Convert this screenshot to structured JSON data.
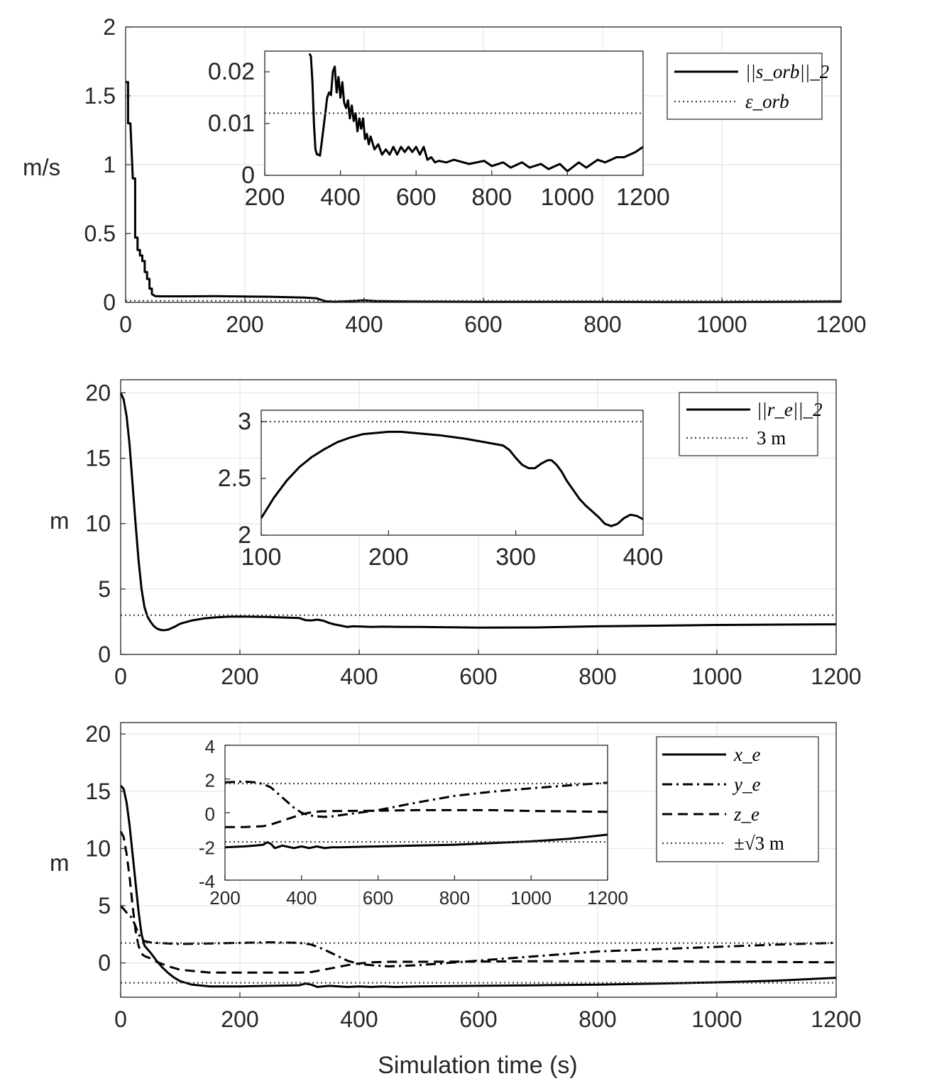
{
  "chart_data": [
    {
      "type": "line",
      "ylabel": "m/s",
      "xlabel": "",
      "xlim": [
        0,
        1200
      ],
      "ylim": [
        0,
        2
      ],
      "xticks": [
        "0",
        "200",
        "400",
        "600",
        "800",
        "1000",
        "1200"
      ],
      "yticks": [
        "0",
        "0.5",
        "1",
        "1.5",
        "2"
      ],
      "grid": true,
      "legend_position": "top-right",
      "series": [
        {
          "name": "||s_orb||_2",
          "style": "solid",
          "x": [
            0,
            4,
            4,
            8,
            8,
            12,
            12,
            16,
            16,
            20,
            20,
            24,
            24,
            28,
            28,
            32,
            32,
            36,
            36,
            40,
            40,
            44,
            44,
            50,
            60,
            100,
            150,
            200,
            250,
            300,
            320,
            335,
            350,
            380,
            400,
            420,
            450,
            500,
            600,
            700,
            800,
            900,
            1000,
            1100,
            1200
          ],
          "y": [
            1.6,
            1.6,
            1.3,
            1.3,
            1.3,
            0.9,
            0.9,
            0.9,
            0.47,
            0.47,
            0.38,
            0.38,
            0.34,
            0.34,
            0.3,
            0.3,
            0.22,
            0.22,
            0.17,
            0.17,
            0.1,
            0.1,
            0.06,
            0.045,
            0.044,
            0.044,
            0.045,
            0.043,
            0.04,
            0.035,
            0.03,
            0.008,
            0.004,
            0.01,
            0.015,
            0.01,
            0.007,
            0.005,
            0.003,
            0.003,
            0.003,
            0.002,
            0.002,
            0.003,
            0.006
          ]
        },
        {
          "name": "ε_orb",
          "style": "dotted",
          "x": [
            0,
            1200
          ],
          "y": [
            0.012,
            0.012
          ]
        }
      ],
      "legend": [
        "||s_orb||_2",
        "ε_orb"
      ],
      "inset": {
        "xlim": [
          200,
          1200
        ],
        "ylim": [
          0,
          0.024
        ],
        "xticks": [
          "200",
          "400",
          "600",
          "800",
          "1000",
          "1200"
        ],
        "yticks": [
          "0",
          "0.01",
          "0.02"
        ],
        "series": [
          {
            "style": "solid",
            "x": [
              318,
              322,
              326,
              330,
              334,
              338,
              342,
              346,
              350,
              355,
              360,
              365,
              370,
              375,
              380,
              385,
              390,
              395,
              400,
              405,
              410,
              415,
              420,
              425,
              430,
              435,
              440,
              445,
              450,
              455,
              460,
              465,
              470,
              475,
              480,
              490,
              500,
              510,
              520,
              530,
              540,
              550,
              560,
              570,
              580,
              590,
              600,
              610,
              620,
              630,
              640,
              650,
              660,
              680,
              700,
              740,
              780,
              800,
              830,
              850,
              880,
              900,
              930,
              950,
              980,
              1000,
              1030,
              1050,
              1080,
              1100,
              1130,
              1150,
              1180,
              1200
            ],
            "y": [
              0.0235,
              0.023,
              0.018,
              0.01,
              0.005,
              0.004,
              0.004,
              0.0038,
              0.006,
              0.009,
              0.012,
              0.015,
              0.016,
              0.0155,
              0.02,
              0.021,
              0.016,
              0.019,
              0.015,
              0.018,
              0.014,
              0.013,
              0.0145,
              0.011,
              0.0135,
              0.0105,
              0.012,
              0.0085,
              0.011,
              0.009,
              0.011,
              0.007,
              0.008,
              0.006,
              0.0075,
              0.005,
              0.006,
              0.004,
              0.005,
              0.004,
              0.0055,
              0.004,
              0.0055,
              0.0045,
              0.0055,
              0.0045,
              0.0055,
              0.004,
              0.0055,
              0.003,
              0.0035,
              0.0025,
              0.0028,
              0.0025,
              0.003,
              0.0022,
              0.0028,
              0.0018,
              0.0025,
              0.0015,
              0.0025,
              0.0015,
              0.0022,
              0.0012,
              0.0022,
              0.0008,
              0.0025,
              0.0015,
              0.003,
              0.0025,
              0.0035,
              0.0035,
              0.0045,
              0.0055
            ]
          },
          {
            "style": "dotted",
            "x": [
              200,
              1200
            ],
            "y": [
              0.012,
              0.012
            ]
          }
        ]
      }
    },
    {
      "type": "line",
      "ylabel": "m",
      "xlabel": "",
      "xlim": [
        0,
        1200
      ],
      "ylim": [
        0,
        21
      ],
      "xticks": [
        "0",
        "200",
        "400",
        "600",
        "800",
        "1000",
        "1200"
      ],
      "yticks": [
        "0",
        "5",
        "10",
        "15",
        "20"
      ],
      "grid": true,
      "legend_position": "top-right",
      "series": [
        {
          "name": "||r_e||_2",
          "style": "solid",
          "x": [
            0,
            5,
            10,
            15,
            20,
            25,
            30,
            35,
            40,
            45,
            50,
            55,
            60,
            65,
            70,
            75,
            80,
            90,
            100,
            120,
            140,
            160,
            180,
            200,
            250,
            300,
            310,
            320,
            330,
            340,
            350,
            360,
            370,
            380,
            390,
            400,
            420,
            440,
            460,
            480,
            500,
            550,
            600,
            700,
            800,
            900,
            1000,
            1100,
            1200
          ],
          "y": [
            20,
            19.5,
            18.2,
            16,
            13,
            10,
            7.2,
            5,
            3.6,
            2.9,
            2.5,
            2.2,
            2.0,
            1.9,
            1.85,
            1.86,
            1.9,
            2.1,
            2.35,
            2.6,
            2.75,
            2.84,
            2.88,
            2.9,
            2.86,
            2.78,
            2.62,
            2.6,
            2.66,
            2.58,
            2.4,
            2.28,
            2.2,
            2.1,
            2.15,
            2.14,
            2.1,
            2.12,
            2.11,
            2.1,
            2.1,
            2.08,
            2.05,
            2.06,
            2.15,
            2.2,
            2.25,
            2.28,
            2.3
          ]
        },
        {
          "name": "3 m",
          "style": "dotted",
          "x": [
            0,
            1200
          ],
          "y": [
            3,
            3
          ]
        }
      ],
      "legend": [
        "||r_e||_2",
        "3 m"
      ],
      "inset": {
        "xlim": [
          100,
          400
        ],
        "ylim": [
          2,
          3.1
        ],
        "xticks": [
          "100",
          "200",
          "300",
          "400"
        ],
        "yticks": [
          "2",
          "2.5",
          "3"
        ],
        "series": [
          {
            "style": "solid",
            "x": [
              100,
              110,
              120,
              130,
              140,
              150,
              160,
              170,
              180,
              190,
              200,
              210,
              220,
              240,
              260,
              280,
              290,
              295,
              300,
              305,
              310,
              315,
              320,
              325,
              328,
              332,
              336,
              340,
              345,
              350,
              355,
              360,
              365,
              370,
              375,
              380,
              385,
              390,
              395,
              400
            ],
            "y": [
              2.15,
              2.33,
              2.48,
              2.6,
              2.69,
              2.76,
              2.82,
              2.86,
              2.89,
              2.9,
              2.91,
              2.91,
              2.9,
              2.88,
              2.85,
              2.81,
              2.79,
              2.75,
              2.68,
              2.62,
              2.59,
              2.59,
              2.63,
              2.66,
              2.66,
              2.62,
              2.56,
              2.48,
              2.4,
              2.32,
              2.26,
              2.21,
              2.16,
              2.1,
              2.08,
              2.1,
              2.15,
              2.18,
              2.17,
              2.14
            ]
          },
          {
            "style": "dotted",
            "x": [
              100,
              400
            ],
            "y": [
              3,
              3
            ]
          }
        ]
      }
    },
    {
      "type": "line",
      "ylabel": "m",
      "xlabel": "Simulation time (s)",
      "xlim": [
        0,
        1200
      ],
      "ylim": [
        -3,
        21
      ],
      "xticks": [
        "0",
        "200",
        "400",
        "600",
        "800",
        "1000",
        "1200"
      ],
      "yticks": [
        "0",
        "5",
        "10",
        "15",
        "20"
      ],
      "grid": true,
      "legend_position": "top-right",
      "series": [
        {
          "name": "x_e",
          "style": "solid",
          "x": [
            0,
            5,
            10,
            15,
            20,
            25,
            30,
            35,
            40,
            45,
            50,
            60,
            70,
            80,
            90,
            100,
            120,
            150,
            200,
            250,
            300,
            310,
            320,
            330,
            350,
            380,
            400,
            420,
            440,
            460,
            500,
            600,
            700,
            800,
            900,
            1000,
            1100,
            1200
          ],
          "y": [
            15.5,
            15.2,
            14,
            12,
            9.5,
            7,
            4.5,
            2.5,
            1.5,
            1.2,
            0.9,
            0.2,
            -0.4,
            -0.9,
            -1.3,
            -1.6,
            -1.9,
            -2.05,
            -2.05,
            -2.0,
            -1.95,
            -1.8,
            -1.9,
            -2.1,
            -2.0,
            -2.1,
            -2.05,
            -2.1,
            -2.05,
            -2.1,
            -2.05,
            -2.0,
            -1.95,
            -1.9,
            -1.8,
            -1.7,
            -1.55,
            -1.3
          ]
        },
        {
          "name": "y_e",
          "style": "dashdot",
          "x": [
            0,
            5,
            10,
            15,
            20,
            25,
            30,
            35,
            40,
            45,
            50,
            60,
            80,
            100,
            150,
            200,
            250,
            300,
            320,
            340,
            360,
            380,
            400,
            420,
            450,
            500,
            600,
            700,
            800,
            900,
            1000,
            1100,
            1200
          ],
          "y": [
            5,
            4.7,
            4.4,
            4.2,
            3.8,
            3.2,
            2.5,
            2.1,
            1.9,
            1.85,
            1.8,
            1.75,
            1.7,
            1.65,
            1.7,
            1.75,
            1.8,
            1.75,
            1.6,
            1.2,
            0.7,
            0.2,
            -0.1,
            -0.2,
            -0.3,
            -0.2,
            0.2,
            0.6,
            1.0,
            1.2,
            1.4,
            1.6,
            1.75
          ]
        },
        {
          "name": "z_e",
          "style": "dashed",
          "x": [
            0,
            5,
            10,
            15,
            20,
            25,
            30,
            35,
            40,
            45,
            50,
            60,
            80,
            100,
            150,
            200,
            250,
            300,
            320,
            340,
            360,
            380,
            400,
            420,
            450,
            500,
            600,
            700,
            800,
            900,
            1000,
            1100,
            1200
          ],
          "y": [
            11.5,
            11,
            9.5,
            7.5,
            5,
            2.8,
            1.5,
            0.8,
            0.6,
            0.5,
            0.4,
            0.1,
            -0.3,
            -0.6,
            -0.85,
            -0.85,
            -0.85,
            -0.85,
            -0.8,
            -0.6,
            -0.4,
            -0.2,
            -0.05,
            0.05,
            0.1,
            0.1,
            0.12,
            0.15,
            0.15,
            0.15,
            0.1,
            0.08,
            0.05
          ]
        },
        {
          "name": "±√3 m",
          "style": "dotted",
          "x": [
            0,
            1200
          ],
          "y": [
            1.732,
            1.732
          ]
        },
        {
          "style": "dotted",
          "x": [
            0,
            1200
          ],
          "y": [
            -1.732,
            -1.732
          ]
        }
      ],
      "legend": [
        "x_e",
        "y_e",
        "z_e",
        "±√3 m"
      ],
      "inset": {
        "xlim": [
          200,
          1200
        ],
        "ylim": [
          -4,
          4
        ],
        "xticks": [
          "200",
          "400",
          "600",
          "800",
          "1000",
          "1200"
        ],
        "yticks": [
          "-4",
          "-2",
          "0",
          "2",
          "4"
        ],
        "series": [
          {
            "style": "solid",
            "x": [
              200,
              250,
              280,
              300,
              310,
              320,
              330,
              350,
              380,
              400,
              420,
              440,
              460,
              480,
              500,
              600,
              700,
              800,
              900,
              1000,
              1100,
              1200
            ],
            "y": [
              -2.05,
              -2.0,
              -1.95,
              -1.9,
              -1.75,
              -1.85,
              -2.1,
              -1.95,
              -2.1,
              -2.0,
              -2.1,
              -2.0,
              -2.1,
              -2.05,
              -2.05,
              -2.0,
              -1.95,
              -1.9,
              -1.8,
              -1.7,
              -1.55,
              -1.3
            ]
          },
          {
            "style": "dashdot",
            "x": [
              200,
              250,
              280,
              300,
              320,
              340,
              360,
              380,
              400,
              420,
              440,
              460,
              480,
              500,
              600,
              700,
              800,
              900,
              1000,
              1100,
              1200
            ],
            "y": [
              1.8,
              1.85,
              1.8,
              1.7,
              1.5,
              1.1,
              0.7,
              0.3,
              0.0,
              -0.15,
              -0.22,
              -0.25,
              -0.22,
              -0.15,
              0.15,
              0.6,
              1.0,
              1.25,
              1.45,
              1.62,
              1.78
            ]
          },
          {
            "style": "dashed",
            "x": [
              200,
              250,
              300,
              320,
              340,
              360,
              380,
              400,
              420,
              450,
              500,
              600,
              700,
              800,
              900,
              1000,
              1100,
              1200
            ],
            "y": [
              -0.85,
              -0.85,
              -0.8,
              -0.7,
              -0.55,
              -0.4,
              -0.25,
              -0.1,
              0.0,
              0.08,
              0.1,
              0.12,
              0.15,
              0.15,
              0.15,
              0.1,
              0.08,
              0.05
            ]
          },
          {
            "style": "dotted",
            "x": [
              200,
              1200
            ],
            "y": [
              1.732,
              1.732
            ]
          },
          {
            "style": "dotted",
            "x": [
              200,
              1200
            ],
            "y": [
              -1.732,
              -1.732
            ]
          }
        ]
      }
    }
  ]
}
